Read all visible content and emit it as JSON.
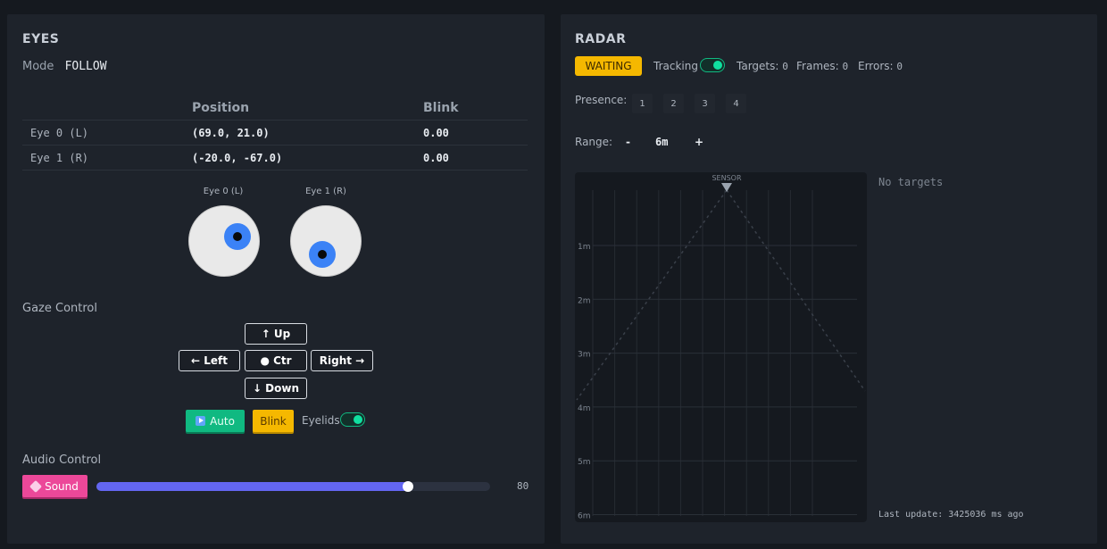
{
  "eyes": {
    "title": "EYES",
    "mode_label": "Mode",
    "mode_value": "FOLLOW",
    "table": {
      "headers": [
        "",
        "Position",
        "Blink"
      ],
      "rows": [
        {
          "name": "Eye 0 (L)",
          "position": "(69.0, 21.0)",
          "blink": "0.00"
        },
        {
          "name": "Eye 1 (R)",
          "position": "(-20.0, -67.0)",
          "blink": "0.00"
        }
      ]
    },
    "previews": [
      {
        "label": "Eye 0 (L)",
        "x": 69.0,
        "y": 21.0
      },
      {
        "label": "Eye 1 (R)",
        "x": -20.0,
        "y": -67.0
      }
    ],
    "gaze_label": "Gaze Control",
    "gaze_buttons": {
      "up": "↑ Up",
      "left": "← Left",
      "center": "● Ctr",
      "right": "Right →",
      "down": "↓ Down"
    },
    "auto_label": "Auto",
    "blink_label": "Blink",
    "eyelids_label": "Eyelids",
    "eyelids_on": true,
    "audio_label": "Audio Control",
    "sound_label": "Sound",
    "volume": 80,
    "volume_text": "80",
    "colors": {
      "auto": "#10b981",
      "blink": "#f5b800",
      "sound": "#ec4899",
      "slider": "#6366f1",
      "iris": "#3b82f6"
    }
  },
  "radar": {
    "title": "RADAR",
    "status": "WAITING",
    "tracking_label": "Tracking",
    "tracking_on": true,
    "targets_label": "Targets:",
    "targets_value": "0",
    "frames_label": "Frames:",
    "frames_value": "0",
    "errors_label": "Errors:",
    "errors_value": "0",
    "presence_label": "Presence:",
    "presence_zones": [
      "1",
      "2",
      "3",
      "4"
    ],
    "range_label": "Range:",
    "range_minus": "-",
    "range_value": "6m",
    "range_plus": "+",
    "sensor_label": "SENSOR",
    "distance_labels": [
      "1m",
      "2m",
      "3m",
      "4m",
      "5m",
      "6m"
    ],
    "no_targets": "No targets",
    "last_update": "Last update: 3425036 ms ago"
  }
}
